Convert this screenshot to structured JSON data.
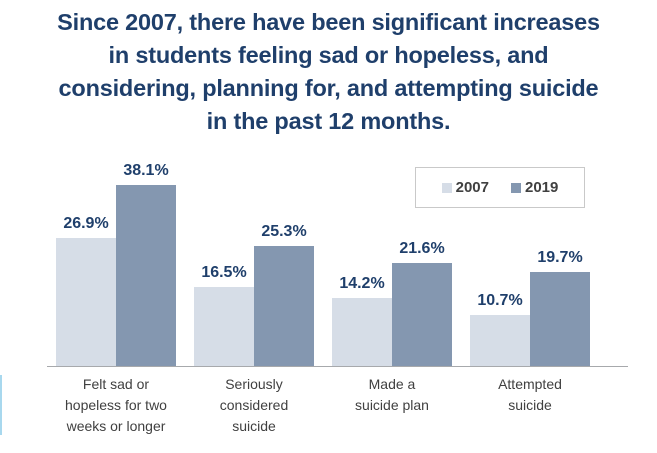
{
  "title_lines": [
    "Since 2007, there have been significant increases",
    "in students feeling sad or hopeless, and",
    "considering, planning for, and attempting suicide",
    "in the past 12 months."
  ],
  "legend": [
    {
      "label": "2007",
      "color": "#d6dde7"
    },
    {
      "label": "2019",
      "color": "#8497b0"
    }
  ],
  "categories": [
    {
      "lines": [
        "Felt sad or",
        "hopeless for two",
        "weeks or longer"
      ]
    },
    {
      "lines": [
        "Seriously",
        "considered",
        "suicide"
      ]
    },
    {
      "lines": [
        "Made a",
        "suicide plan"
      ]
    },
    {
      "lines": [
        "Attempted",
        "suicide"
      ]
    }
  ],
  "value_labels": [
    [
      "26.9%",
      "38.1%"
    ],
    [
      "16.5%",
      "25.3%"
    ],
    [
      "14.2%",
      "21.6%"
    ],
    [
      "10.7%",
      "19.7%"
    ]
  ],
  "chart_data": {
    "type": "bar",
    "title": "Since 2007, there have been significant increases in students feeling sad or hopeless, and considering, planning for, and attempting suicide in the past 12 months.",
    "categories": [
      "Felt sad or hopeless for two weeks or longer",
      "Seriously considered suicide",
      "Made a suicide plan",
      "Attempted suicide"
    ],
    "series": [
      {
        "name": "2007",
        "values": [
          26.9,
          16.5,
          14.2,
          10.7
        ],
        "color": "#d6dde7"
      },
      {
        "name": "2019",
        "values": [
          38.1,
          25.3,
          21.6,
          19.7
        ],
        "color": "#8497b0"
      }
    ],
    "xlabel": "",
    "ylabel": "",
    "ylim": [
      0,
      40
    ],
    "grid": false,
    "legend_position": "top-right",
    "data_labels": true,
    "value_format": "percent"
  }
}
